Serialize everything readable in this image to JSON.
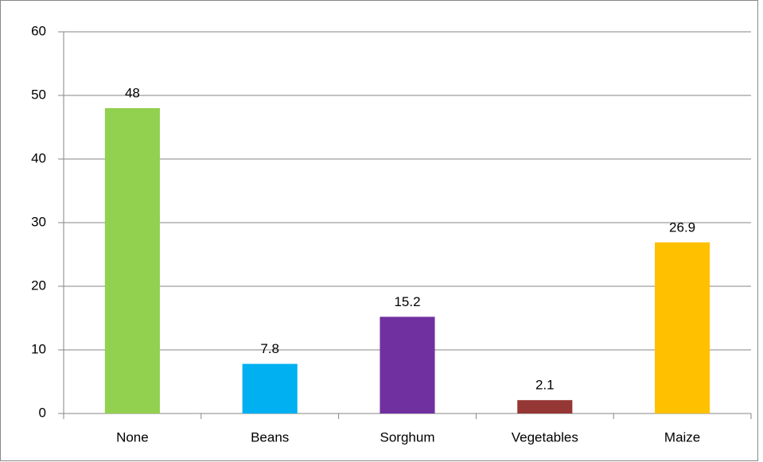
{
  "chart_data": {
    "type": "bar",
    "categories": [
      "None",
      "Beans",
      "Sorghum",
      "Vegetables",
      "Maize"
    ],
    "values": [
      48,
      7.8,
      15.2,
      2.1,
      26.9
    ],
    "colors": [
      "#92d050",
      "#00b0f0",
      "#7030a0",
      "#953735",
      "#ffc000"
    ],
    "ylim": [
      0,
      60
    ],
    "yticks": [
      0,
      10,
      20,
      30,
      40,
      50,
      60
    ],
    "grid": true
  }
}
